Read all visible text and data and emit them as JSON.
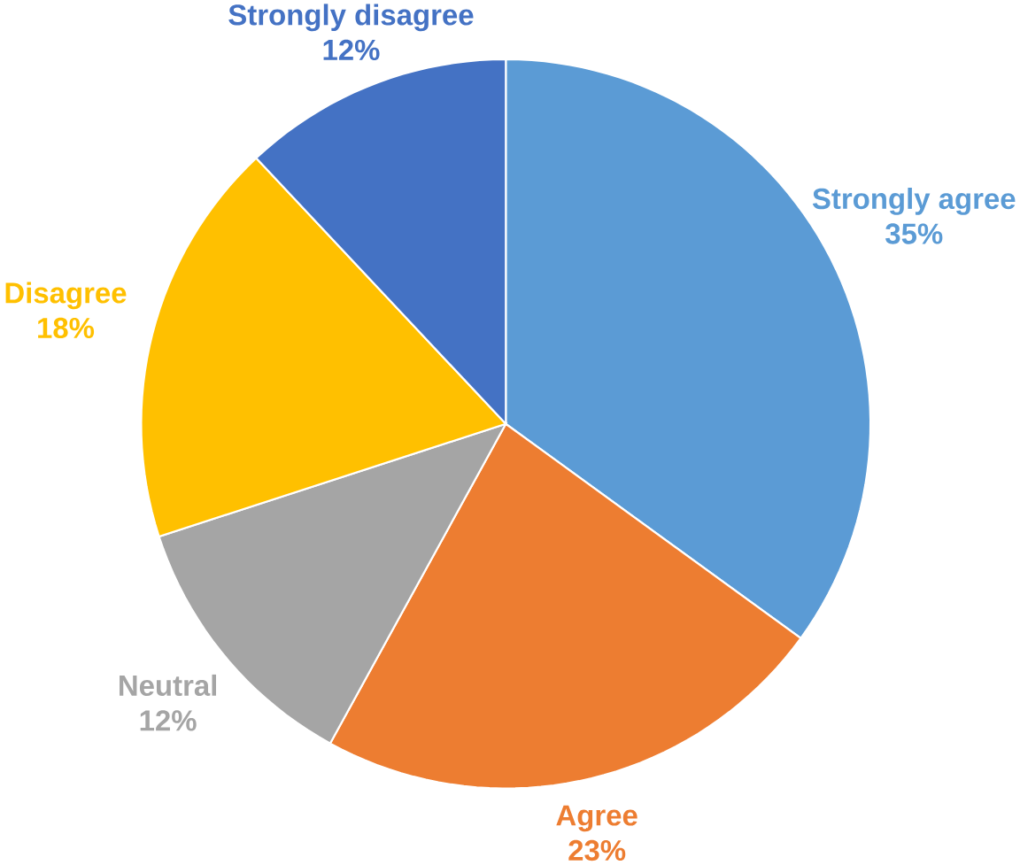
{
  "chart_data": {
    "type": "pie",
    "categories": [
      "Strongly agree",
      "Agree",
      "Neutral",
      "Disagree",
      "Strongly disagree"
    ],
    "values": [
      35,
      23,
      12,
      18,
      12
    ],
    "colors": [
      "#5b9bd5",
      "#ed7d31",
      "#a5a5a5",
      "#ffc000",
      "#4472c4"
    ],
    "value_labels": [
      "35%",
      "23%",
      "12%",
      "18%",
      "12%"
    ]
  }
}
